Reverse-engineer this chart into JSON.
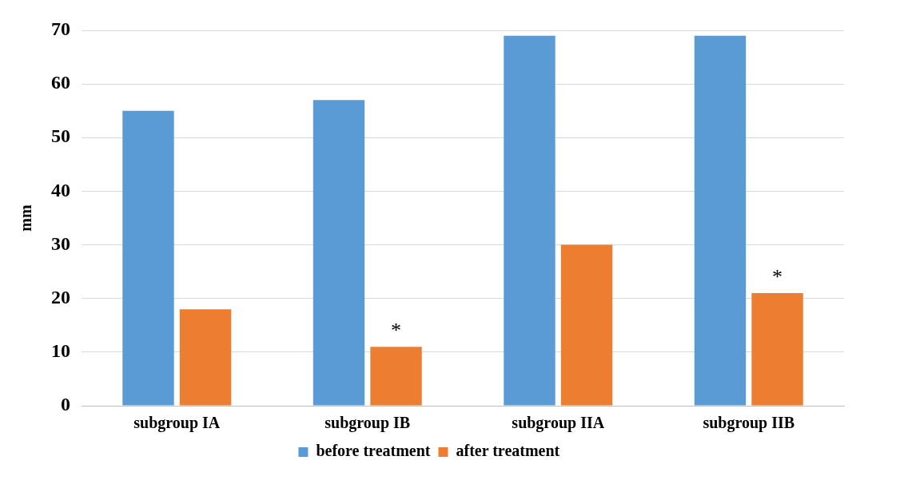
{
  "chart_data": {
    "type": "bar",
    "ylabel": "mm",
    "categories": [
      "subgroup IA",
      "subgroup IB",
      "subgroup IIA",
      "subgroup IIB"
    ],
    "series": [
      {
        "name": "before treatment",
        "color": "#5b9bd5",
        "values": [
          55,
          57,
          69,
          69
        ]
      },
      {
        "name": "after treatment",
        "color": "#ed7d31",
        "values": [
          18,
          11,
          30,
          21
        ]
      }
    ],
    "ylim": [
      0,
      70
    ],
    "yticks": [
      0,
      10,
      20,
      30,
      40,
      50,
      60,
      70
    ],
    "grid": "y",
    "legend": "bottom",
    "annotations": [
      {
        "text": "*",
        "x": "subgroup IB",
        "y": 11
      },
      {
        "text": "*",
        "x": "subgroup IIB",
        "y": 21
      }
    ]
  }
}
